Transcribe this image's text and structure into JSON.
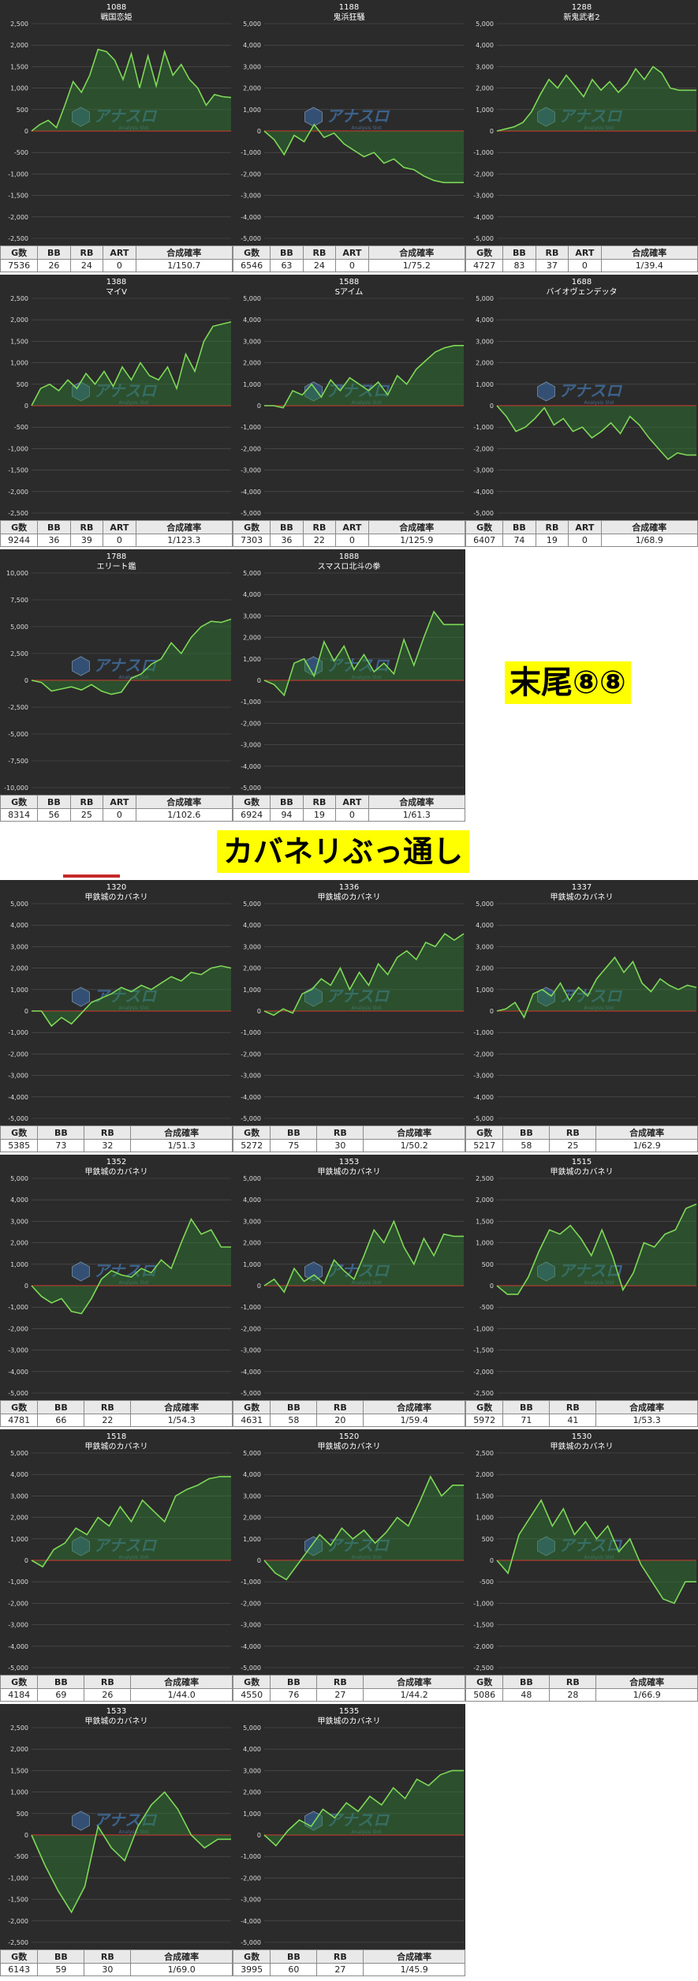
{
  "notes": {
    "suffix": "末尾⑧⑧",
    "kabaneri": "カバネリぶっ通し"
  },
  "watermark": {
    "text": "アナスロ",
    "sub": "Analysis Slot"
  },
  "colors": {
    "panel_bg": "#2b2b2b",
    "line": "#7ed957",
    "fill": "#2e7d32",
    "zero": "#d32f2f",
    "grid": "#555555",
    "note_bg": "#ffff00"
  },
  "stat_headers_art": [
    "G数",
    "BB",
    "RB",
    "ART",
    "合成確率"
  ],
  "stat_headers": [
    "G数",
    "BB",
    "RB",
    "合成確率"
  ],
  "chart_data": [
    {
      "type": "area",
      "number": "1088",
      "name": "戦国恋姫",
      "ylim": [
        -2500,
        2500
      ],
      "ticks": [
        "2,500",
        "2,000",
        "1,500",
        "1,000",
        "500",
        "0",
        "-500",
        "-1,000",
        "-1,500",
        "-2,000",
        "-2,500"
      ],
      "values": [
        0,
        150,
        250,
        80,
        600,
        1150,
        900,
        1300,
        1900,
        1850,
        1650,
        1200,
        1800,
        1000,
        1750,
        1050,
        1850,
        1300,
        1550,
        1200,
        1000,
        600,
        850,
        800,
        780
      ],
      "stats": [
        "7536",
        "26",
        "24",
        "0",
        "1/150.7"
      ]
    },
    {
      "type": "area",
      "number": "1188",
      "name": "鬼浜狂騒",
      "ylim": [
        -5000,
        5000
      ],
      "ticks": [
        "5,000",
        "4,000",
        "3,000",
        "2,000",
        "1,000",
        "0",
        "-1,000",
        "-2,000",
        "-3,000",
        "-4,000",
        "-5,000"
      ],
      "values": [
        0,
        -400,
        -1100,
        -200,
        -500,
        300,
        -300,
        -100,
        -600,
        -900,
        -1200,
        -1000,
        -1500,
        -1300,
        -1700,
        -1800,
        -2100,
        -2300,
        -2400,
        -2400,
        -2400
      ],
      "stats": [
        "6546",
        "63",
        "24",
        "0",
        "1/75.2"
      ]
    },
    {
      "type": "area",
      "number": "1288",
      "name": "新鬼武者2",
      "ylim": [
        -5000,
        5000
      ],
      "ticks": [
        "5,000",
        "4,000",
        "3,000",
        "2,000",
        "1,000",
        "0",
        "-1,000",
        "-2,000",
        "-3,000",
        "-4,000",
        "-5,000"
      ],
      "values": [
        0,
        100,
        200,
        400,
        900,
        1700,
        2400,
        2000,
        2600,
        2100,
        1600,
        2400,
        1900,
        2300,
        1800,
        2200,
        2900,
        2400,
        3000,
        2700,
        2000,
        1900,
        1900,
        1900
      ],
      "stats": [
        "4727",
        "83",
        "37",
        "0",
        "1/39.4"
      ]
    },
    {
      "type": "area",
      "number": "1388",
      "name": "マイV",
      "ylim": [
        -2500,
        2500
      ],
      "ticks": [
        "2,500",
        "2,000",
        "1,500",
        "1,000",
        "500",
        "0",
        "-500",
        "-1,000",
        "-1,500",
        "-2,000",
        "-2,500"
      ],
      "values": [
        0,
        400,
        500,
        350,
        600,
        400,
        750,
        500,
        800,
        450,
        900,
        600,
        1000,
        700,
        600,
        900,
        400,
        1200,
        800,
        1500,
        1850,
        1900,
        1950
      ],
      "stats": [
        "9244",
        "36",
        "39",
        "0",
        "1/123.3"
      ]
    },
    {
      "type": "area",
      "number": "1588",
      "name": "Sアイム",
      "ylim": [
        -5000,
        5000
      ],
      "ticks": [
        "5,000",
        "4,000",
        "3,000",
        "2,000",
        "1,000",
        "0",
        "-1,000",
        "-2,000",
        "-3,000",
        "-4,000",
        "-5,000"
      ],
      "values": [
        0,
        0,
        -100,
        700,
        500,
        1000,
        400,
        1200,
        700,
        1300,
        1000,
        700,
        1100,
        500,
        1400,
        1000,
        1700,
        2100,
        2500,
        2700,
        2800,
        2800
      ],
      "stats": [
        "7303",
        "36",
        "22",
        "0",
        "1/125.9"
      ]
    },
    {
      "type": "area",
      "number": "1688",
      "name": "バイオヴェンデッタ",
      "ylim": [
        -5000,
        5000
      ],
      "ticks": [
        "5,000",
        "4,000",
        "3,000",
        "2,000",
        "1,000",
        "0",
        "-1,000",
        "-2,000",
        "-3,000",
        "-4,000",
        "-5,000"
      ],
      "values": [
        0,
        -500,
        -1200,
        -1000,
        -600,
        -100,
        -900,
        -600,
        -1200,
        -1000,
        -1500,
        -1200,
        -800,
        -1300,
        -500,
        -900,
        -1500,
        -2000,
        -2500,
        -2200,
        -2300,
        -2300
      ],
      "stats": [
        "6407",
        "74",
        "19",
        "0",
        "1/68.9"
      ]
    },
    {
      "type": "area",
      "number": "1788",
      "name": "エリート鑑",
      "ylim": [
        -10000,
        10000
      ],
      "ticks": [
        "10,000",
        "7,500",
        "5,000",
        "2,500",
        "0",
        "-2,500",
        "-5,000",
        "-7,500",
        "-10,000"
      ],
      "values": [
        0,
        -200,
        -1000,
        -800,
        -600,
        -900,
        -400,
        -1000,
        -1300,
        -1100,
        200,
        600,
        1500,
        2000,
        3500,
        2500,
        4000,
        5000,
        5500,
        5400,
        5700
      ],
      "stats": [
        "8314",
        "56",
        "25",
        "0",
        "1/102.6"
      ]
    },
    {
      "type": "area",
      "number": "1888",
      "name": "スマスロ北斗の拳",
      "ylim": [
        -5000,
        5000
      ],
      "ticks": [
        "5,000",
        "4,000",
        "3,000",
        "2,000",
        "1,000",
        "0",
        "-1,000",
        "-2,000",
        "-3,000",
        "-4,000",
        "-5,000"
      ],
      "values": [
        0,
        -200,
        -700,
        800,
        1000,
        200,
        1800,
        900,
        1600,
        500,
        1200,
        400,
        800,
        300,
        1900,
        700,
        2000,
        3200,
        2600,
        2600,
        2600
      ],
      "stats": [
        "6924",
        "94",
        "19",
        "0",
        "1/61.3"
      ]
    },
    {
      "type": "area",
      "number": "1320",
      "name": "甲鉄城のカバネリ",
      "ylim": [
        -5000,
        5000
      ],
      "ticks": [
        "5,000",
        "4,000",
        "3,000",
        "2,000",
        "1,000",
        "0",
        "-1,000",
        "-2,000",
        "-3,000",
        "-4,000",
        "-5,000"
      ],
      "values": [
        0,
        0,
        -700,
        -300,
        -600,
        -100,
        400,
        600,
        800,
        1100,
        900,
        1200,
        1000,
        1300,
        1600,
        1400,
        1800,
        1700,
        2000,
        2100,
        2000
      ],
      "stats": [
        "5385",
        "73",
        "32",
        "1/51.3"
      ]
    },
    {
      "type": "area",
      "number": "1336",
      "name": "甲鉄城のカバネリ",
      "ylim": [
        -5000,
        5000
      ],
      "ticks": [
        "5,000",
        "4,000",
        "3,000",
        "2,000",
        "1,000",
        "0",
        "-1,000",
        "-2,000",
        "-3,000",
        "-4,000",
        "-5,000"
      ],
      "values": [
        0,
        -200,
        100,
        -100,
        800,
        1000,
        1500,
        1200,
        2000,
        1000,
        1800,
        1200,
        2200,
        1700,
        2500,
        2800,
        2400,
        3200,
        3000,
        3600,
        3300,
        3600
      ],
      "stats": [
        "5272",
        "75",
        "30",
        "1/50.2"
      ]
    },
    {
      "type": "area",
      "number": "1337",
      "name": "甲鉄城のカバネリ",
      "ylim": [
        -5000,
        5000
      ],
      "ticks": [
        "5,000",
        "4,000",
        "3,000",
        "2,000",
        "1,000",
        "0",
        "-1,000",
        "-2,000",
        "-3,000",
        "-4,000",
        "-5,000"
      ],
      "values": [
        0,
        100,
        400,
        -300,
        800,
        1000,
        700,
        1300,
        500,
        1100,
        700,
        1500,
        2000,
        2500,
        1800,
        2300,
        1300,
        900,
        1500,
        1200,
        1000,
        1200,
        1100
      ],
      "stats": [
        "5217",
        "58",
        "25",
        "1/62.9"
      ]
    },
    {
      "type": "area",
      "number": "1352",
      "name": "甲鉄城のカバネリ",
      "ylim": [
        -5000,
        5000
      ],
      "ticks": [
        "5,000",
        "4,000",
        "3,000",
        "2,000",
        "1,000",
        "0",
        "-1,000",
        "-2,000",
        "-3,000",
        "-4,000",
        "-5,000"
      ],
      "values": [
        0,
        -500,
        -800,
        -600,
        -1200,
        -1300,
        -600,
        300,
        700,
        500,
        400,
        800,
        600,
        1200,
        800,
        2000,
        3100,
        2400,
        2600,
        1800,
        1800
      ],
      "stats": [
        "4781",
        "66",
        "22",
        "1/54.3"
      ]
    },
    {
      "type": "area",
      "number": "1353",
      "name": "甲鉄城のカバネリ",
      "ylim": [
        -5000,
        5000
      ],
      "ticks": [
        "5,000",
        "4,000",
        "3,000",
        "2,000",
        "1,000",
        "0",
        "-1,000",
        "-2,000",
        "-3,000",
        "-4,000",
        "-5,000"
      ],
      "values": [
        0,
        300,
        -300,
        800,
        200,
        500,
        100,
        1200,
        700,
        300,
        1400,
        2600,
        2000,
        3000,
        1800,
        1000,
        2200,
        1400,
        2400,
        2300,
        2300
      ],
      "stats": [
        "4631",
        "58",
        "20",
        "1/59.4"
      ]
    },
    {
      "type": "area",
      "number": "1515",
      "name": "甲鉄城のカバネリ",
      "ylim": [
        -2500,
        2500
      ],
      "ticks": [
        "2,500",
        "2,000",
        "1,500",
        "1,000",
        "500",
        "0",
        "-500",
        "-1,000",
        "-1,500",
        "-2,000",
        "-2,500"
      ],
      "values": [
        0,
        -200,
        -200,
        200,
        800,
        1300,
        1200,
        1400,
        1100,
        700,
        1300,
        700,
        -100,
        300,
        1000,
        900,
        1200,
        1300,
        1800,
        1900
      ],
      "stats": [
        "5972",
        "71",
        "41",
        "1/53.3"
      ]
    },
    {
      "type": "area",
      "number": "1518",
      "name": "甲鉄城のカバネリ",
      "ylim": [
        -5000,
        5000
      ],
      "ticks": [
        "5,000",
        "4,000",
        "3,000",
        "2,000",
        "1,000",
        "0",
        "-1,000",
        "-2,000",
        "-3,000",
        "-4,000",
        "-5,000"
      ],
      "values": [
        0,
        -300,
        500,
        800,
        1500,
        1200,
        2000,
        1600,
        2500,
        1800,
        2800,
        2300,
        1800,
        3000,
        3300,
        3500,
        3800,
        3900,
        3900
      ],
      "stats": [
        "4184",
        "69",
        "26",
        "1/44.0"
      ]
    },
    {
      "type": "area",
      "number": "1520",
      "name": "甲鉄城のカバネリ",
      "ylim": [
        -5000,
        5000
      ],
      "ticks": [
        "5,000",
        "4,000",
        "3,000",
        "2,000",
        "1,000",
        "0",
        "-1,000",
        "-2,000",
        "-3,000",
        "-4,000",
        "-5,000"
      ],
      "values": [
        0,
        -600,
        -900,
        -200,
        500,
        1200,
        700,
        1500,
        1000,
        1400,
        800,
        1300,
        2000,
        1600,
        2700,
        3900,
        3000,
        3500,
        3500
      ],
      "stats": [
        "4550",
        "76",
        "27",
        "1/44.2"
      ]
    },
    {
      "type": "area",
      "number": "1530",
      "name": "甲鉄城のカバネリ",
      "ylim": [
        -2500,
        2500
      ],
      "ticks": [
        "2,500",
        "2,000",
        "1,500",
        "1,000",
        "500",
        "0",
        "-500",
        "-1,000",
        "-1,500",
        "-2,000",
        "-2,500"
      ],
      "values": [
        0,
        -300,
        600,
        1000,
        1400,
        800,
        1200,
        600,
        900,
        500,
        800,
        200,
        500,
        -100,
        -500,
        -900,
        -1000,
        -500,
        -500
      ],
      "stats": [
        "5086",
        "48",
        "28",
        "1/66.9"
      ]
    },
    {
      "type": "area",
      "number": "1533",
      "name": "甲鉄城のカバネリ",
      "ylim": [
        -2500,
        2500
      ],
      "ticks": [
        "2,500",
        "2,000",
        "1,500",
        "1,000",
        "500",
        "0",
        "-500",
        "-1,000",
        "-1,500",
        "-2,000",
        "-2,500"
      ],
      "values": [
        0,
        -700,
        -1300,
        -1800,
        -1200,
        200,
        -300,
        -600,
        200,
        700,
        1000,
        600,
        0,
        -300,
        -100,
        -100
      ],
      "stats": [
        "6143",
        "59",
        "30",
        "1/69.0"
      ]
    },
    {
      "type": "area",
      "number": "1535",
      "name": "甲鉄城のカバネリ",
      "ylim": [
        -5000,
        5000
      ],
      "ticks": [
        "5,000",
        "4,000",
        "3,000",
        "2,000",
        "1,000",
        "0",
        "-1,000",
        "-2,000",
        "-3,000",
        "-4,000",
        "-5,000"
      ],
      "values": [
        0,
        -500,
        200,
        700,
        400,
        1200,
        800,
        1500,
        1100,
        1800,
        1400,
        2200,
        1700,
        2600,
        2300,
        2800,
        3000,
        3000
      ],
      "stats": [
        "3995",
        "60",
        "27",
        "1/45.9"
      ]
    }
  ]
}
